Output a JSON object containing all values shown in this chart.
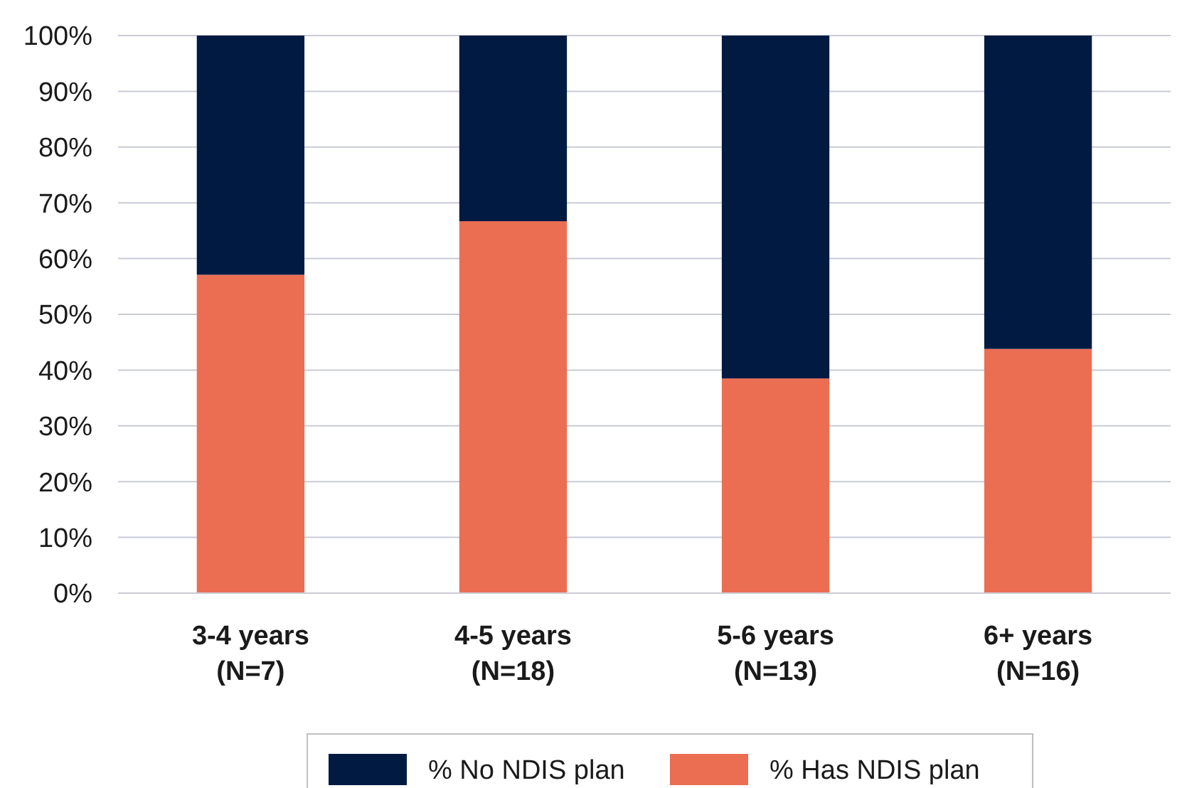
{
  "chart_data": {
    "type": "bar",
    "stacked": true,
    "categories": [
      "3-4 years\n(N=7)",
      "4-5 years\n(N=18)",
      "5-6 years\n(N=13)",
      "6+ years\n(N=16)"
    ],
    "series": [
      {
        "name": "% Has NDIS plan",
        "color": "#eb6e53",
        "values": [
          57.1,
          66.7,
          38.5,
          43.8
        ]
      },
      {
        "name": "% No NDIS plan",
        "color": "#001a41",
        "values": [
          42.9,
          33.3,
          61.5,
          56.2
        ]
      }
    ],
    "ylim": [
      0,
      100
    ],
    "yticks": [
      {
        "value": 0,
        "label": "0%"
      },
      {
        "value": 10,
        "label": "10%"
      },
      {
        "value": 20,
        "label": "20%"
      },
      {
        "value": 30,
        "label": "30%"
      },
      {
        "value": 40,
        "label": "40%"
      },
      {
        "value": 50,
        "label": "50%"
      },
      {
        "value": 60,
        "label": "60%"
      },
      {
        "value": 70,
        "label": "70%"
      },
      {
        "value": 80,
        "label": "80%"
      },
      {
        "value": 90,
        "label": "90%"
      },
      {
        "value": 100,
        "label": "100%"
      }
    ],
    "grid": "y",
    "legend": "bottom"
  }
}
